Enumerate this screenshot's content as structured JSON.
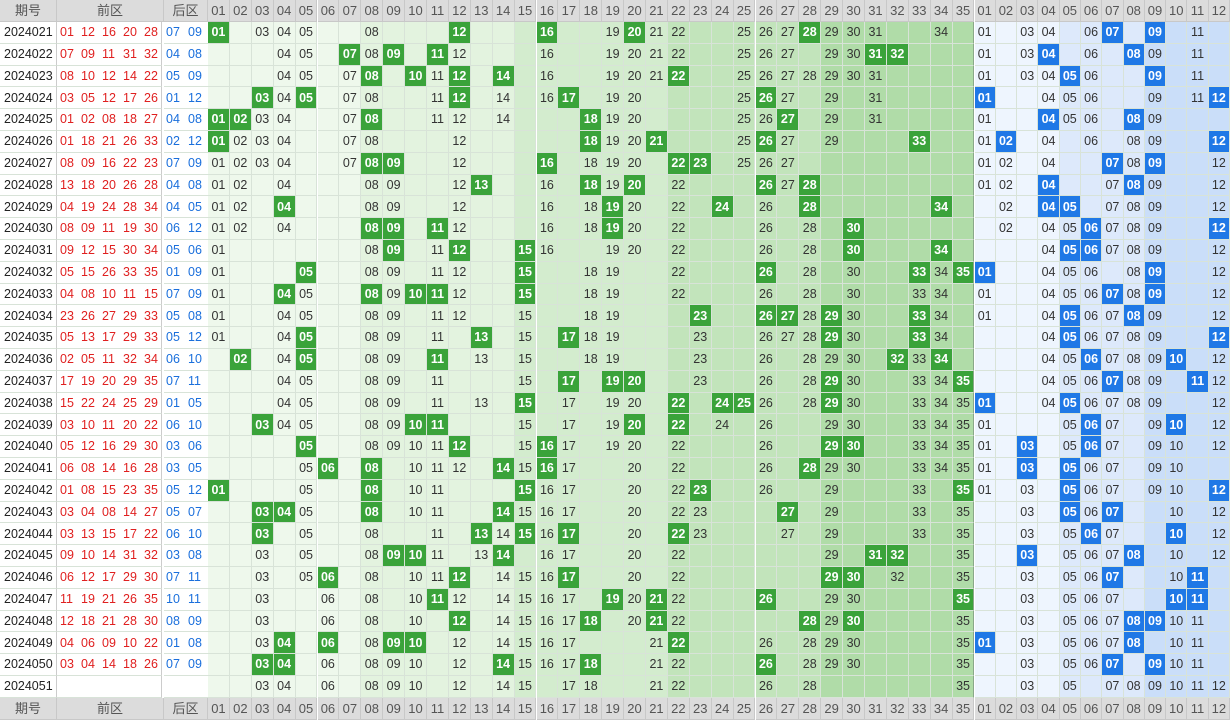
{
  "headers": {
    "period": "期号",
    "front": "前区",
    "back": "后区",
    "front_cols": [
      "01",
      "02",
      "03",
      "04",
      "05",
      "06",
      "07",
      "08",
      "09",
      "10",
      "11",
      "12",
      "13",
      "14",
      "15",
      "16",
      "17",
      "18",
      "19",
      "20",
      "21",
      "22",
      "23",
      "24",
      "25",
      "26",
      "27",
      "28",
      "29",
      "30",
      "31",
      "32",
      "33",
      "34",
      "35"
    ],
    "back_cols": [
      "01",
      "02",
      "03",
      "04",
      "05",
      "06",
      "07",
      "08",
      "09",
      "10",
      "11",
      "12"
    ]
  },
  "rows": [
    {
      "p": "2024021",
      "f": [
        "01",
        "12",
        "16",
        "20",
        "28"
      ],
      "b": [
        "07",
        "09"
      ],
      "fv": [
        3,
        4,
        5,
        8,
        19,
        21,
        22,
        25,
        26,
        27,
        29,
        30,
        31,
        34
      ],
      "bv": [
        1,
        3,
        4,
        6,
        9,
        11
      ]
    },
    {
      "p": "2024022",
      "f": [
        "07",
        "09",
        "11",
        "31",
        "32"
      ],
      "b": [
        "04",
        "08"
      ],
      "fv": [
        4,
        5,
        8,
        12,
        16,
        19,
        20,
        21,
        22,
        25,
        26,
        27,
        29,
        30,
        31
      ],
      "bv": [
        1,
        3,
        4,
        6,
        9,
        11
      ]
    },
    {
      "p": "2024023",
      "f": [
        "08",
        "10",
        "12",
        "14",
        "22"
      ],
      "b": [
        "05",
        "09"
      ],
      "fv": [
        4,
        5,
        7,
        8,
        11,
        12,
        16,
        19,
        20,
        21,
        25,
        26,
        27,
        28,
        29,
        30,
        31
      ],
      "bv": [
        1,
        3,
        4,
        6,
        9,
        11
      ]
    },
    {
      "p": "2024024",
      "f": [
        "03",
        "05",
        "12",
        "17",
        "26"
      ],
      "b": [
        "01",
        "12"
      ],
      "fv": [
        4,
        7,
        8,
        11,
        12,
        14,
        16,
        19,
        20,
        25,
        26,
        27,
        29,
        31
      ],
      "bv": [
        1,
        4,
        5,
        6,
        9,
        11
      ]
    },
    {
      "p": "2024025",
      "f": [
        "01",
        "02",
        "08",
        "18",
        "27"
      ],
      "b": [
        "04",
        "08"
      ],
      "fv": [
        3,
        4,
        7,
        8,
        11,
        12,
        14,
        19,
        20,
        25,
        26,
        27,
        29,
        31
      ],
      "bv": [
        1,
        4,
        5,
        6,
        9
      ]
    },
    {
      "p": "2024026",
      "f": [
        "01",
        "18",
        "21",
        "26",
        "33"
      ],
      "b": [
        "02",
        "12"
      ],
      "fv": [
        1,
        2,
        3,
        4,
        7,
        8,
        12,
        18,
        19,
        20,
        25,
        26,
        27,
        29
      ],
      "bv": [
        1,
        4,
        6,
        8,
        9
      ]
    },
    {
      "p": "2024027",
      "f": [
        "08",
        "09",
        "16",
        "22",
        "23"
      ],
      "b": [
        "07",
        "09"
      ],
      "fv": [
        1,
        2,
        3,
        4,
        7,
        8,
        12,
        18,
        19,
        20,
        25,
        26,
        27
      ],
      "bv": [
        1,
        2,
        4,
        8,
        9,
        12
      ]
    },
    {
      "p": "2024028",
      "f": [
        "13",
        "18",
        "20",
        "26",
        "28"
      ],
      "b": [
        "04",
        "08"
      ],
      "fv": [
        1,
        2,
        4,
        8,
        9,
        12,
        16,
        18,
        19,
        20,
        22,
        26,
        27
      ],
      "bv": [
        1,
        2,
        4,
        7,
        8,
        9,
        12
      ]
    },
    {
      "p": "2024029",
      "f": [
        "04",
        "19",
        "24",
        "28",
        "34"
      ],
      "b": [
        "04",
        "05"
      ],
      "fv": [
        1,
        2,
        8,
        9,
        12,
        16,
        18,
        19,
        20,
        22,
        26,
        28
      ],
      "bv": [
        2,
        4,
        7,
        8,
        9,
        12
      ]
    },
    {
      "p": "2024030",
      "f": [
        "08",
        "09",
        "11",
        "19",
        "30"
      ],
      "b": [
        "06",
        "12"
      ],
      "fv": [
        1,
        2,
        4,
        8,
        9,
        12,
        16,
        18,
        19,
        20,
        22,
        26,
        28
      ],
      "bv": [
        2,
        4,
        5,
        7,
        8,
        9,
        12
      ]
    },
    {
      "p": "2024031",
      "f": [
        "09",
        "12",
        "15",
        "30",
        "34"
      ],
      "b": [
        "05",
        "06"
      ],
      "fv": [
        1,
        8,
        9,
        11,
        12,
        16,
        19,
        20,
        22,
        26,
        28
      ],
      "bv": [
        4,
        5,
        7,
        8,
        9,
        12
      ]
    },
    {
      "p": "2024032",
      "f": [
        "05",
        "15",
        "26",
        "33",
        "35"
      ],
      "b": [
        "01",
        "09"
      ],
      "fv": [
        1,
        8,
        9,
        11,
        12,
        18,
        19,
        22,
        26,
        28,
        30,
        34
      ],
      "bv": [
        4,
        5,
        6,
        8,
        9,
        12
      ]
    },
    {
      "p": "2024033",
      "f": [
        "04",
        "08",
        "10",
        "11",
        "15"
      ],
      "b": [
        "07",
        "09"
      ],
      "fv": [
        1,
        5,
        8,
        9,
        12,
        15,
        18,
        19,
        22,
        26,
        28,
        30,
        33,
        34
      ],
      "bv": [
        1,
        4,
        5,
        6,
        8,
        9,
        12
      ]
    },
    {
      "p": "2024034",
      "f": [
        "23",
        "26",
        "27",
        "29",
        "33"
      ],
      "b": [
        "05",
        "08"
      ],
      "fv": [
        1,
        4,
        5,
        8,
        9,
        11,
        12,
        15,
        18,
        19,
        26,
        28,
        30,
        33,
        34
      ],
      "bv": [
        1,
        4,
        5,
        6,
        7,
        8,
        9,
        12
      ]
    },
    {
      "p": "2024035",
      "f": [
        "05",
        "13",
        "17",
        "29",
        "33"
      ],
      "b": [
        "05",
        "12"
      ],
      "fv": [
        1,
        4,
        8,
        9,
        11,
        15,
        18,
        19,
        23,
        26,
        27,
        28,
        30,
        33,
        34
      ],
      "bv": [
        4,
        5,
        6,
        7,
        8,
        9,
        12
      ]
    },
    {
      "p": "2024036",
      "f": [
        "02",
        "05",
        "11",
        "32",
        "34"
      ],
      "b": [
        "06",
        "10"
      ],
      "fv": [
        4,
        5,
        8,
        9,
        11,
        13,
        15,
        18,
        19,
        23,
        26,
        28,
        29,
        30,
        33,
        34
      ],
      "bv": [
        4,
        5,
        6,
        7,
        8,
        9,
        12
      ]
    },
    {
      "p": "2024037",
      "f": [
        "17",
        "19",
        "20",
        "29",
        "35"
      ],
      "b": [
        "07",
        "11"
      ],
      "fv": [
        4,
        5,
        8,
        9,
        11,
        15,
        19,
        23,
        26,
        28,
        29,
        30,
        33,
        34
      ],
      "bv": [
        4,
        5,
        6,
        7,
        8,
        9,
        12
      ]
    },
    {
      "p": "2024038",
      "f": [
        "15",
        "22",
        "24",
        "25",
        "29"
      ],
      "b": [
        "01",
        "05"
      ],
      "fv": [
        4,
        5,
        8,
        9,
        11,
        13,
        15,
        17,
        19,
        20,
        26,
        28,
        29,
        30,
        33,
        34,
        35
      ],
      "bv": [
        4,
        5,
        6,
        7,
        8,
        9,
        12
      ]
    },
    {
      "p": "2024039",
      "f": [
        "03",
        "10",
        "11",
        "20",
        "22"
      ],
      "b": [
        "06",
        "10"
      ],
      "fv": [
        4,
        5,
        8,
        9,
        11,
        15,
        17,
        19,
        24,
        26,
        29,
        30,
        33,
        34,
        35
      ],
      "bv": [
        1,
        5,
        6,
        7,
        9,
        12
      ]
    },
    {
      "p": "2024040",
      "f": [
        "05",
        "12",
        "16",
        "29",
        "30"
      ],
      "b": [
        "03",
        "06"
      ],
      "fv": [
        5,
        8,
        9,
        10,
        11,
        15,
        17,
        19,
        20,
        22,
        26,
        29,
        30,
        33,
        34,
        35
      ],
      "bv": [
        1,
        5,
        6,
        7,
        9,
        10,
        12
      ]
    },
    {
      "p": "2024041",
      "f": [
        "06",
        "08",
        "14",
        "16",
        "28"
      ],
      "b": [
        "03",
        "05"
      ],
      "fv": [
        5,
        10,
        11,
        12,
        15,
        17,
        20,
        22,
        26,
        29,
        30,
        33,
        34,
        35
      ],
      "bv": [
        1,
        5,
        6,
        7,
        9,
        10
      ]
    },
    {
      "p": "2024042",
      "f": [
        "01",
        "08",
        "15",
        "23",
        "35"
      ],
      "b": [
        "05",
        "12"
      ],
      "fv": [
        5,
        8,
        10,
        11,
        15,
        16,
        17,
        20,
        22,
        26,
        29,
        33,
        35
      ],
      "bv": [
        1,
        3,
        5,
        6,
        7,
        9,
        10
      ]
    },
    {
      "p": "2024043",
      "f": [
        "03",
        "04",
        "08",
        "14",
        "27"
      ],
      "b": [
        "05",
        "07"
      ],
      "fv": [
        5,
        8,
        10,
        11,
        15,
        16,
        17,
        20,
        22,
        23,
        29,
        33,
        35
      ],
      "bv": [
        3,
        5,
        6,
        7,
        10,
        12
      ]
    },
    {
      "p": "2024044",
      "f": [
        "03",
        "13",
        "15",
        "17",
        "22"
      ],
      "b": [
        "06",
        "10"
      ],
      "fv": [
        3,
        5,
        8,
        11,
        14,
        15,
        16,
        17,
        20,
        22,
        23,
        27,
        29,
        33,
        35
      ],
      "bv": [
        3,
        5,
        6,
        7,
        10,
        12
      ]
    },
    {
      "p": "2024045",
      "f": [
        "09",
        "10",
        "14",
        "31",
        "32"
      ],
      "b": [
        "03",
        "08"
      ],
      "fv": [
        3,
        5,
        8,
        11,
        13,
        14,
        16,
        17,
        20,
        22,
        29,
        35
      ],
      "bv": [
        3,
        5,
        6,
        7,
        10,
        12
      ]
    },
    {
      "p": "2024046",
      "f": [
        "06",
        "12",
        "17",
        "29",
        "30"
      ],
      "b": [
        "07",
        "11"
      ],
      "fv": [
        3,
        5,
        8,
        10,
        11,
        14,
        15,
        16,
        17,
        20,
        22,
        29,
        32,
        35
      ],
      "bv": [
        3,
        5,
        6,
        7,
        10
      ]
    },
    {
      "p": "2024047",
      "f": [
        "11",
        "19",
        "21",
        "26",
        "35"
      ],
      "b": [
        "10",
        "11"
      ],
      "fv": [
        3,
        6,
        8,
        10,
        12,
        14,
        15,
        16,
        17,
        20,
        22,
        29,
        30,
        35
      ],
      "bv": [
        3,
        5,
        6,
        7,
        10,
        11
      ]
    },
    {
      "p": "2024048",
      "f": [
        "12",
        "18",
        "21",
        "28",
        "30"
      ],
      "b": [
        "08",
        "09"
      ],
      "fv": [
        3,
        6,
        8,
        10,
        12,
        14,
        15,
        16,
        17,
        20,
        22,
        29,
        30,
        35
      ],
      "bv": [
        3,
        5,
        6,
        7,
        10,
        11
      ]
    },
    {
      "p": "2024049",
      "f": [
        "04",
        "06",
        "09",
        "10",
        "22"
      ],
      "b": [
        "01",
        "08"
      ],
      "fv": [
        3,
        6,
        8,
        10,
        12,
        14,
        15,
        16,
        17,
        21,
        22,
        26,
        28,
        29,
        30,
        35
      ],
      "bv": [
        3,
        5,
        6,
        7,
        8,
        10,
        11
      ]
    },
    {
      "p": "2024050",
      "f": [
        "03",
        "04",
        "14",
        "18",
        "26"
      ],
      "b": [
        "07",
        "09"
      ],
      "fv": [
        3,
        4,
        6,
        8,
        9,
        10,
        12,
        14,
        15,
        16,
        17,
        21,
        22,
        26,
        28,
        29,
        30,
        35
      ],
      "bv": [
        3,
        5,
        6,
        7,
        10,
        11
      ]
    },
    {
      "p": "2024051",
      "f": [],
      "b": [],
      "fv": [
        3,
        4,
        6,
        8,
        9,
        10,
        12,
        14,
        15,
        17,
        18,
        21,
        22,
        26,
        28,
        35
      ],
      "bv": [
        3,
        5,
        7,
        8,
        9,
        10,
        11,
        12
      ]
    }
  ],
  "footer": {
    "period": "期号",
    "front": "前区",
    "back": "后区"
  }
}
